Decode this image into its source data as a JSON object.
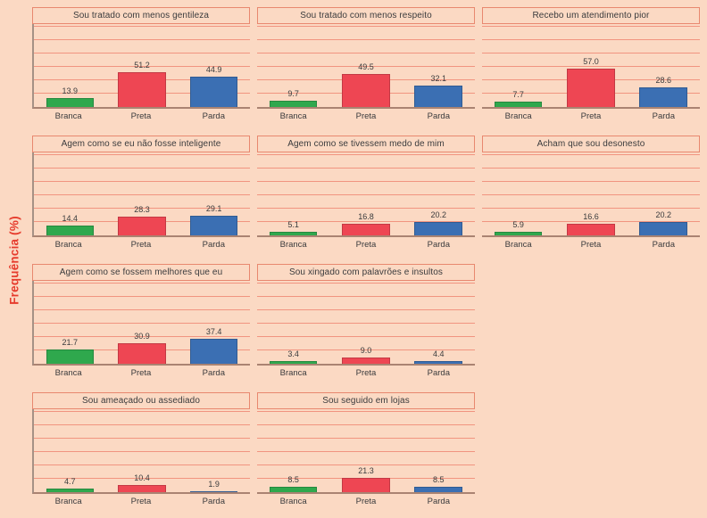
{
  "figure": {
    "ylabel": "Frequência (%)",
    "background": "#fbd9c3",
    "colors": {
      "grid_line": "#f19480",
      "title_border": "#e8886f",
      "axis_line": "#aa8372",
      "spine": "#a59185",
      "text": "#3a3b3d",
      "ylabel_color": "#e63b2c",
      "bar_branca": "#2fa84d",
      "bar_preta": "#ee4653",
      "bar_parda": "#3b6fb3"
    }
  },
  "chart_data": {
    "type": "bar",
    "layout": "small-multiples, 3 columns x 4 rows, shared y scale",
    "ylabel": "Frequência (%)",
    "categories": [
      "Branca",
      "Preta",
      "Parda"
    ],
    "bar_colors": [
      "#2fa84d",
      "#ee4653",
      "#3b6fb3"
    ],
    "ylim": [
      0,
      126
    ],
    "gridline_step": 20,
    "gridline_max": 120,
    "grid_on": true,
    "legend": null,
    "panels": [
      {
        "title": "Sou tratado com menos gentileza",
        "values": [
          13.9,
          51.2,
          44.9
        ],
        "grid": {
          "row": 1,
          "col": 1
        }
      },
      {
        "title": "Sou tratado com menos respeito",
        "values": [
          9.7,
          49.5,
          32.1
        ],
        "grid": {
          "row": 1,
          "col": 2
        }
      },
      {
        "title": "Recebo um atendimento pior",
        "values": [
          7.7,
          57.0,
          28.6
        ],
        "grid": {
          "row": 1,
          "col": 3
        }
      },
      {
        "title": "Agem como se eu não fosse inteligente",
        "values": [
          14.4,
          28.3,
          29.1
        ],
        "grid": {
          "row": 2,
          "col": 1
        }
      },
      {
        "title": "Agem como se tivessem medo de mim",
        "values": [
          5.1,
          16.8,
          20.2
        ],
        "grid": {
          "row": 2,
          "col": 2
        }
      },
      {
        "title": "Acham que sou desonesto",
        "values": [
          5.9,
          16.6,
          20.2
        ],
        "grid": {
          "row": 2,
          "col": 3
        }
      },
      {
        "title": "Agem como se fossem melhores que eu",
        "values": [
          21.7,
          30.9,
          37.4
        ],
        "grid": {
          "row": 3,
          "col": 1
        }
      },
      {
        "title": "Sou xingado com palavrões e insultos",
        "values": [
          3.4,
          9.0,
          4.4
        ],
        "grid": {
          "row": 3,
          "col": 2
        }
      },
      {
        "title": "Sou ameaçado ou assediado",
        "values": [
          4.7,
          10.4,
          1.9
        ],
        "grid": {
          "row": 4,
          "col": 1
        }
      },
      {
        "title": "Sou seguido em lojas",
        "values": [
          8.5,
          21.3,
          8.5
        ],
        "grid": {
          "row": 4,
          "col": 2
        }
      }
    ]
  }
}
